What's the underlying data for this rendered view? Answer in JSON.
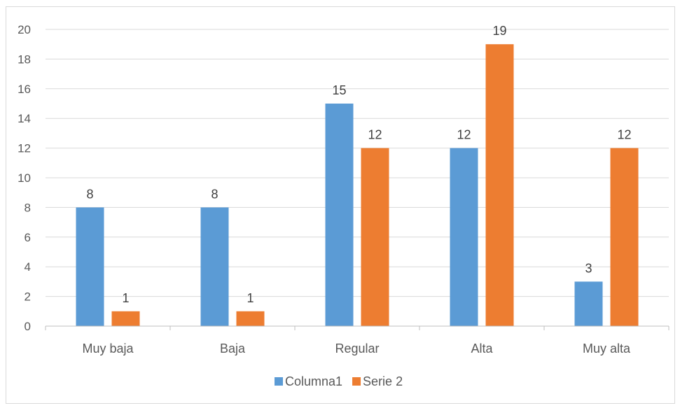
{
  "chart_data": {
    "type": "bar",
    "title": "",
    "xlabel": "",
    "ylabel": "",
    "categories": [
      "Muy baja",
      "Baja",
      "Regular",
      "Alta",
      "Muy alta"
    ],
    "series": [
      {
        "name": "Columna1",
        "values": [
          8,
          8,
          15,
          12,
          3
        ],
        "color": "#5B9BD5"
      },
      {
        "name": "Serie 2",
        "values": [
          1,
          1,
          12,
          19,
          12
        ],
        "color": "#ED7D31"
      }
    ],
    "ylim": [
      0,
      20
    ],
    "yticks": [
      0,
      2,
      4,
      6,
      8,
      10,
      12,
      14,
      16,
      18,
      20
    ],
    "grid": true,
    "data_labels": true,
    "legend": {
      "position": "bottom"
    }
  }
}
